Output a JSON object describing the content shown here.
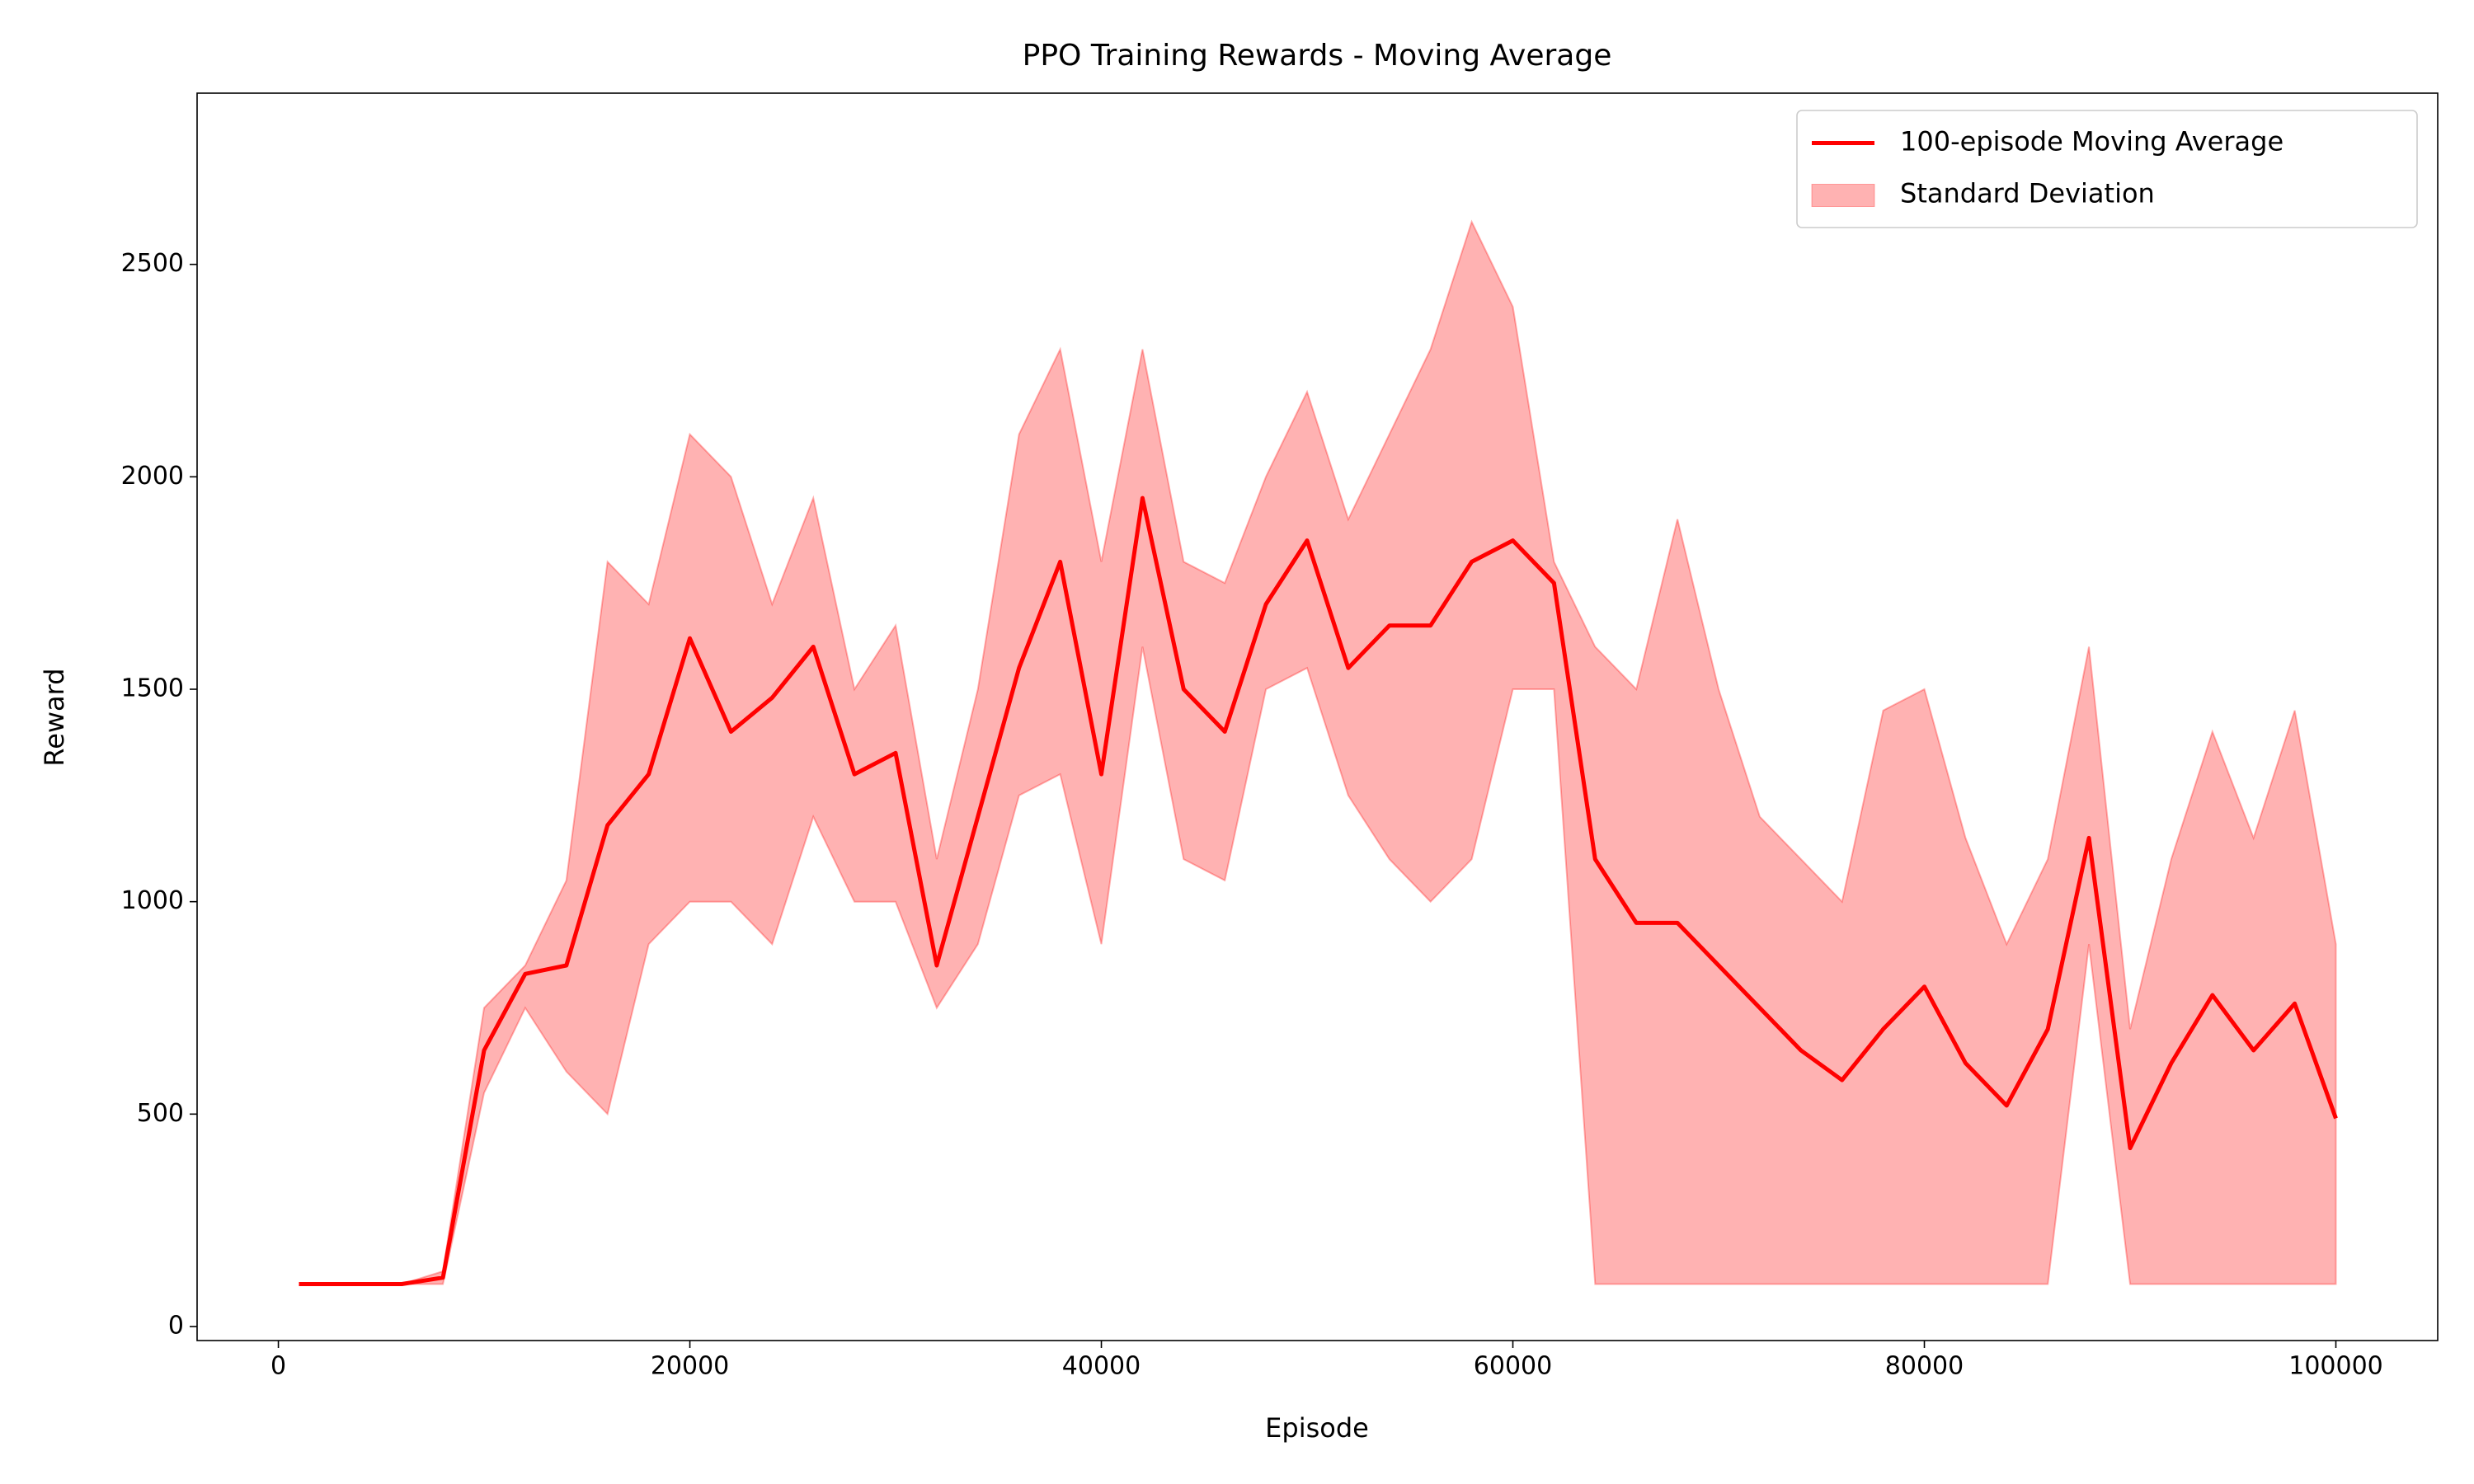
{
  "chart_data": {
    "type": "line",
    "title": "PPO Training Rewards - Moving Average",
    "x_label": "Episode",
    "y_label": "Reward",
    "x": [
      1000,
      2000,
      4000,
      6000,
      8000,
      10000,
      12000,
      14000,
      16000,
      18000,
      20000,
      22000,
      24000,
      26000,
      28000,
      30000,
      32000,
      34000,
      36000,
      38000,
      40000,
      42000,
      44000,
      46000,
      48000,
      50000,
      52000,
      54000,
      56000,
      58000,
      60000,
      62000,
      64000,
      66000,
      68000,
      70000,
      72000,
      74000,
      76000,
      78000,
      80000,
      82000,
      84000,
      86000,
      88000,
      90000,
      92000,
      94000,
      96000,
      98000,
      100000
    ],
    "series": [
      {
        "name": "100-episode Moving Average",
        "color": "#ff0000",
        "values": [
          100,
          100,
          100,
          100,
          115,
          650,
          830,
          850,
          1180,
          1300,
          1620,
          1400,
          1480,
          1600,
          1300,
          1350,
          850,
          1200,
          1550,
          1800,
          1300,
          1950,
          1500,
          1400,
          1700,
          1850,
          1550,
          1650,
          1650,
          1800,
          1850,
          1750,
          1100,
          950,
          950,
          850,
          750,
          650,
          580,
          700,
          800,
          620,
          520,
          700,
          1150,
          420,
          620,
          780,
          650,
          760,
          490
        ]
      },
      {
        "name": "Standard Deviation",
        "color": "#ff0000",
        "type": "band",
        "upper": [
          100,
          100,
          100,
          100,
          130,
          750,
          850,
          1050,
          1800,
          1700,
          2100,
          2000,
          1700,
          1950,
          1500,
          1650,
          1100,
          1500,
          2100,
          2300,
          1800,
          2300,
          1800,
          1750,
          2000,
          2200,
          1900,
          2100,
          2300,
          2600,
          2400,
          1800,
          1600,
          1500,
          1900,
          1500,
          1200,
          1100,
          1000,
          1450,
          1500,
          1150,
          900,
          1100,
          1600,
          700,
          1100,
          1400,
          1150,
          1450,
          900
        ],
        "lower": [
          100,
          100,
          100,
          100,
          100,
          550,
          750,
          600,
          500,
          900,
          1000,
          1000,
          900,
          1200,
          1000,
          1000,
          750,
          900,
          1250,
          1300,
          900,
          1600,
          1100,
          1050,
          1500,
          1550,
          1250,
          1100,
          1000,
          1100,
          1500,
          1500,
          100,
          100,
          100,
          100,
          100,
          100,
          100,
          100,
          100,
          100,
          100,
          100,
          900,
          100,
          100,
          100,
          100,
          100,
          100
        ]
      }
    ],
    "xlim": [
      -3950,
      104950
    ],
    "ylim": [
      -33,
      2903
    ],
    "xticks": [
      0,
      20000,
      40000,
      60000,
      80000,
      100000
    ],
    "yticks": [
      0,
      500,
      1000,
      1500,
      2000,
      2500
    ],
    "grid": false,
    "legend": "upper right"
  }
}
